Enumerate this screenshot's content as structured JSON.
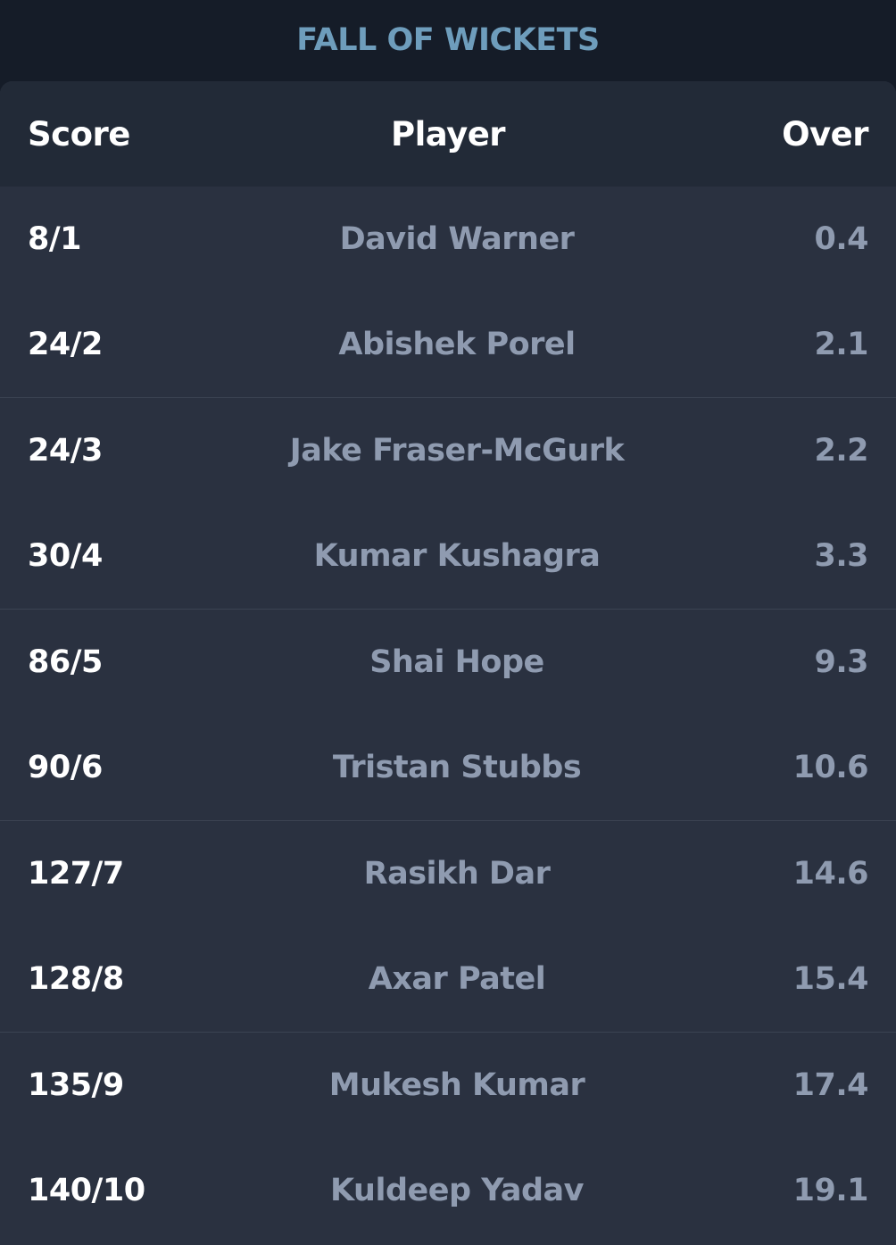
{
  "title": "FALL OF WICKETS",
  "headers": {
    "score": "Score",
    "player": "Player",
    "over": "Over"
  },
  "colors": {
    "page_bg": "#151c28",
    "card_bg": "#2a3140",
    "header_bg": "#222a37",
    "title": "#6e9dbc",
    "score_text": "#ffffff",
    "muted_text": "#8f9bb0",
    "divider": "#3b4352"
  },
  "wickets": [
    {
      "score": "8/1",
      "player": "David Warner",
      "over": "0.4"
    },
    {
      "score": "24/2",
      "player": "Abishek Porel",
      "over": "2.1"
    },
    {
      "score": "24/3",
      "player": "Jake Fraser-McGurk",
      "over": "2.2"
    },
    {
      "score": "30/4",
      "player": "Kumar Kushagra",
      "over": "3.3"
    },
    {
      "score": "86/5",
      "player": "Shai Hope",
      "over": "9.3"
    },
    {
      "score": "90/6",
      "player": "Tristan Stubbs",
      "over": "10.6"
    },
    {
      "score": "127/7",
      "player": "Rasikh Dar",
      "over": "14.6"
    },
    {
      "score": "128/8",
      "player": "Axar Patel",
      "over": "15.4"
    },
    {
      "score": "135/9",
      "player": "Mukesh Kumar",
      "over": "17.4"
    },
    {
      "score": "140/10",
      "player": "Kuldeep Yadav",
      "over": "19.1"
    }
  ]
}
